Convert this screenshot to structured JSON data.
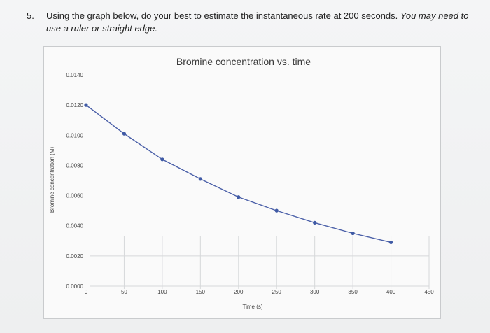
{
  "question": {
    "number": "5.",
    "text": "Using the graph below, do your best to estimate the instantaneous rate at 200 seconds.",
    "emphasis": "You may need to use a ruler or straight edge."
  },
  "chart_data": {
    "type": "line",
    "title": "Bromine concentration vs. time",
    "xlabel": "Time (s)",
    "ylabel": "Bromine concentration (M)",
    "xlim": [
      0,
      450
    ],
    "ylim": [
      0,
      0.014
    ],
    "x_ticks": [
      "0",
      "50",
      "100",
      "150",
      "200",
      "250",
      "300",
      "350",
      "400",
      "450"
    ],
    "y_ticks": [
      "0.0000",
      "0.0020",
      "0.0040",
      "0.0060",
      "0.0080",
      "0.0100",
      "0.0120",
      "0.0140"
    ],
    "series": [
      {
        "color": "#4a5fa8",
        "x": [
          0,
          50,
          100,
          150,
          200,
          250,
          300,
          350,
          400
        ],
        "y": [
          0.012,
          0.0101,
          0.0084,
          0.0071,
          0.0059,
          0.005,
          0.0042,
          0.0035,
          0.0029
        ]
      }
    ]
  },
  "colors": {
    "line": "#4a5fa8",
    "marker": "#3f5aa5",
    "grid": "#d6d8da",
    "text": "#222222"
  }
}
